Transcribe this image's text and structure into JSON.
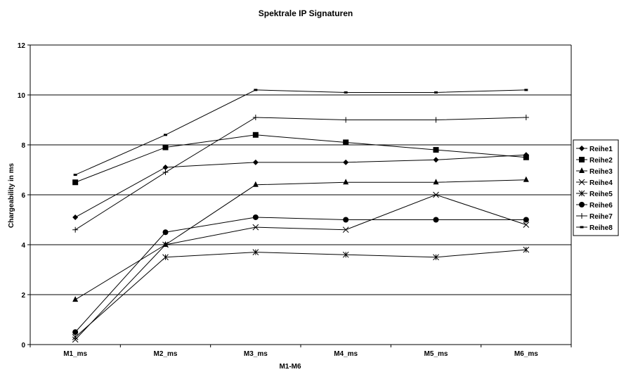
{
  "chart_data": {
    "type": "line",
    "title": "Spektrale IP Signaturen",
    "xlabel": "M1-M6",
    "ylabel": "Chargeability in ms",
    "categories": [
      "M1_ms",
      "M2_ms",
      "M3_ms",
      "M4_ms",
      "M5_ms",
      "M6_ms"
    ],
    "ylim": [
      0,
      12
    ],
    "yticks": [
      0,
      2,
      4,
      6,
      8,
      10,
      12
    ],
    "grid": true,
    "legend": "right",
    "series": [
      {
        "name": "Reihe1",
        "marker": "diamond",
        "values": [
          5.1,
          7.1,
          7.3,
          7.3,
          7.4,
          7.6
        ]
      },
      {
        "name": "Reihe2",
        "marker": "square",
        "values": [
          6.5,
          7.9,
          8.4,
          8.1,
          7.8,
          7.5
        ]
      },
      {
        "name": "Reihe3",
        "marker": "triangle",
        "values": [
          1.8,
          4.0,
          6.4,
          6.5,
          6.5,
          6.6
        ]
      },
      {
        "name": "Reihe4",
        "marker": "x",
        "values": [
          0.2,
          4.0,
          4.7,
          4.6,
          6.0,
          4.8
        ]
      },
      {
        "name": "Reihe5",
        "marker": "star",
        "values": [
          0.3,
          3.5,
          3.7,
          3.6,
          3.5,
          3.8
        ]
      },
      {
        "name": "Reihe6",
        "marker": "circle",
        "values": [
          0.5,
          4.5,
          5.1,
          5.0,
          5.0,
          5.0
        ]
      },
      {
        "name": "Reihe7",
        "marker": "plus",
        "values": [
          4.6,
          6.9,
          9.1,
          9.0,
          9.0,
          9.1
        ]
      },
      {
        "name": "Reihe8",
        "marker": "dash",
        "values": [
          6.8,
          8.4,
          10.2,
          10.1,
          10.1,
          10.2
        ]
      }
    ]
  }
}
